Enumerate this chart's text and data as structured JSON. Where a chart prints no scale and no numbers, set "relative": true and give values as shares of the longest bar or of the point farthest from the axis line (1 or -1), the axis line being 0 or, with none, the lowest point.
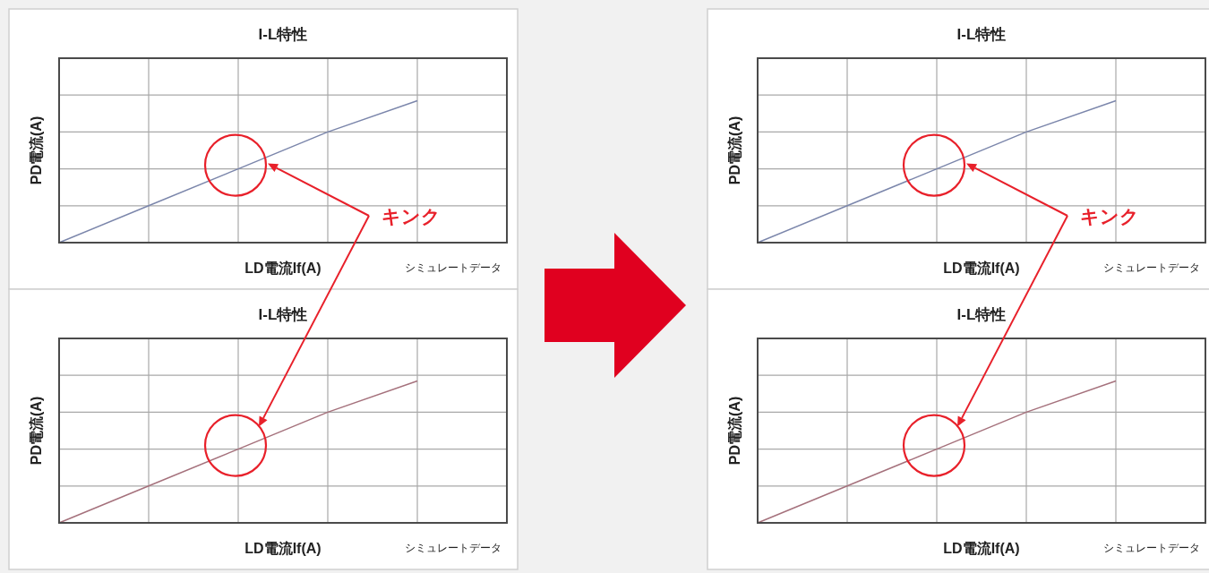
{
  "chart_data": [
    {
      "type": "line",
      "title": "I-L特性",
      "xlabel": "LD電流If(A)",
      "ylabel": "PD電流(A)",
      "relative": true,
      "grid": true,
      "categories": [
        null,
        null,
        null,
        null,
        null,
        null
      ],
      "series": [
        {
          "color": "#7b86ab",
          "values": [
            0,
            0.26,
            0.52,
            0.78,
            1,
            null
          ]
        }
      ],
      "annotations": [
        "キンク",
        "シミュレートデータ"
      ]
    },
    {
      "type": "line",
      "title": "I-L特性",
      "xlabel": "LD電流If(A)",
      "ylabel": "PD電流(A)",
      "relative": true,
      "grid": true,
      "categories": [
        null,
        null,
        null,
        null,
        null,
        null
      ],
      "series": [
        {
          "color": "#a5717c",
          "values": [
            0,
            0.26,
            0.52,
            0.78,
            1,
            null
          ]
        }
      ],
      "annotations": [
        "シミュレートデータ"
      ]
    },
    {
      "type": "line",
      "title": "I-L特性",
      "xlabel": "LD電流If(A)",
      "ylabel": "PD電流(A)",
      "relative": true,
      "grid": true,
      "categories": [
        null,
        null,
        null,
        null,
        null,
        null
      ],
      "series": [
        {
          "color": "#7b86ab",
          "values": [
            0,
            0.26,
            0.52,
            0.78,
            1,
            null
          ]
        }
      ],
      "annotations": [
        "キンク",
        "シミュレートデータ"
      ]
    },
    {
      "type": "line",
      "title": "I-L特性",
      "xlabel": "LD電流If(A)",
      "ylabel": "PD電流(A)",
      "relative": true,
      "grid": true,
      "categories": [
        null,
        null,
        null,
        null,
        null,
        null
      ],
      "series": [
        {
          "color": "#a5717c",
          "values": [
            0,
            0.26,
            0.52,
            0.78,
            1,
            null
          ]
        }
      ],
      "annotations": [
        "シミュレートデータ"
      ]
    }
  ]
}
